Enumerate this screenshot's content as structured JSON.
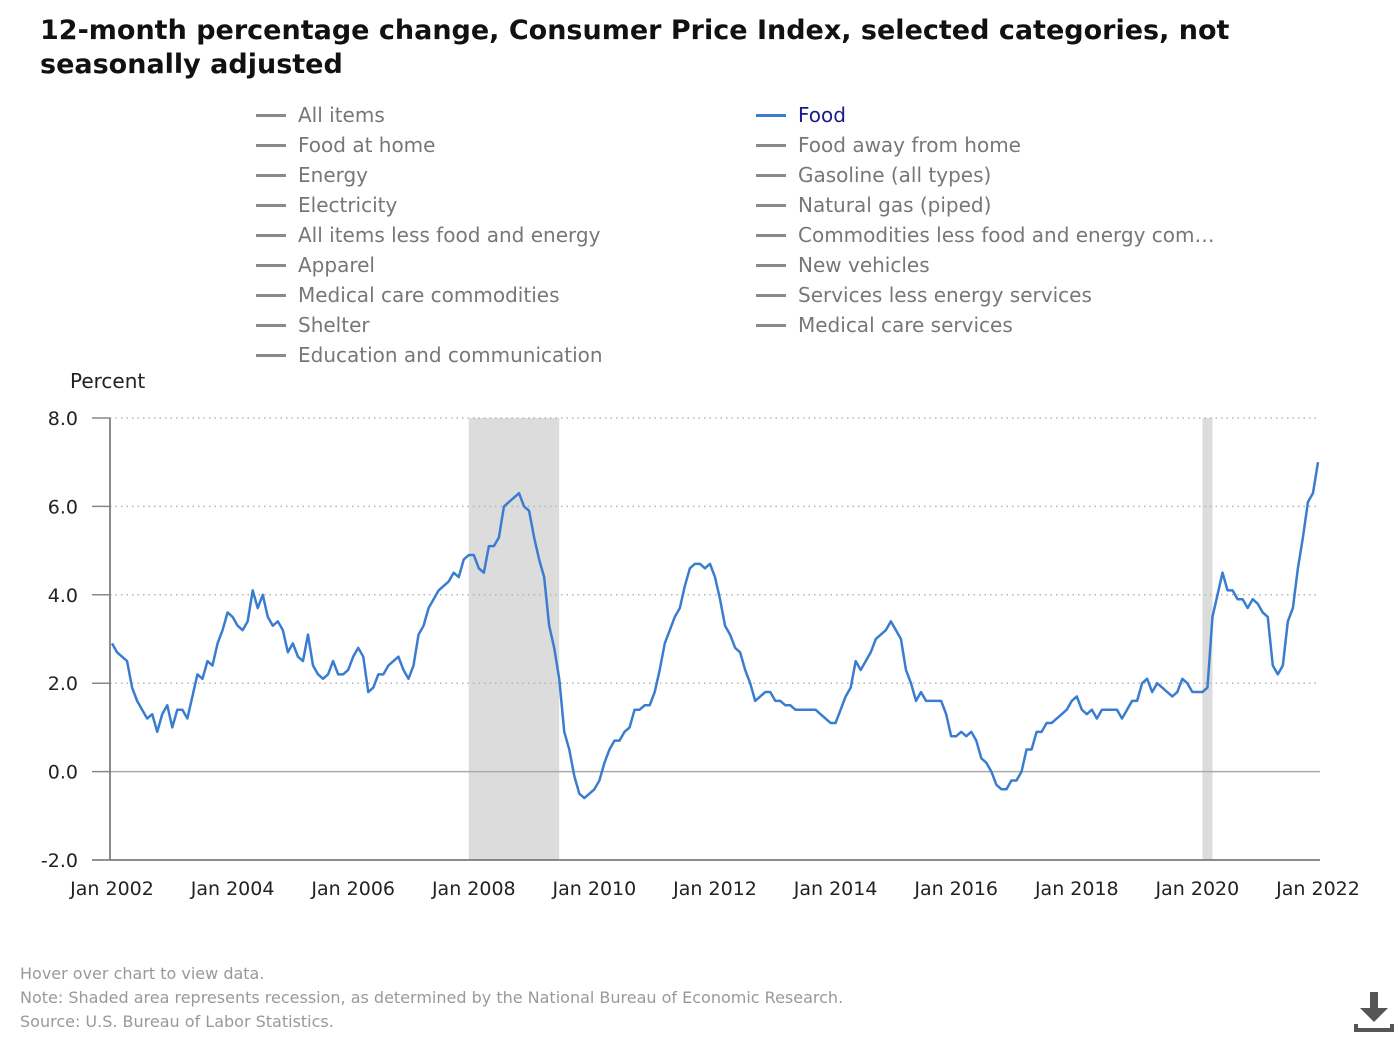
{
  "title": "12-month percentage change, Consumer Price Index, selected categories, not seasonally adjusted",
  "legend": {
    "left": [
      "All items",
      "Food at home",
      "Energy",
      "Electricity",
      "All items less food and energy",
      "Apparel",
      "Medical care commodities",
      "Shelter",
      "Education and communication"
    ],
    "right": [
      "Food",
      "Food away from home",
      "Gasoline (all types)",
      "Natural gas (piped)",
      "Commodities less food and energy com…",
      "New vehicles",
      "Services less energy services",
      "Medical care services"
    ],
    "active": "Food",
    "active_color": "#3a7dd0",
    "inactive_color": "#8a8a8a"
  },
  "footer": {
    "hover_hint": "Hover over chart to view data.",
    "note": "Note: Shaded area represents recession, as determined by the National Bureau of Economic Research.",
    "source": "Source: U.S. Bureau of Labor Statistics."
  },
  "download_icon": "download-icon",
  "chart_data": {
    "type": "line",
    "ylabel": "Percent",
    "ylim": [
      -2.0,
      8.0
    ],
    "yticks": [
      "8.0",
      "6.0",
      "4.0",
      "2.0",
      "0.0",
      "-2.0"
    ],
    "xticks": [
      "Jan 2002",
      "Jan 2004",
      "Jan 2006",
      "Jan 2008",
      "Jan 2010",
      "Jan 2012",
      "Jan 2014",
      "Jan 2016",
      "Jan 2018",
      "Jan 2020",
      "Jan 2022"
    ],
    "x_start": "Jan 2002",
    "x_frequency": "monthly",
    "grid": "horizontal dotted",
    "recessions": [
      {
        "start": "Dec 2007",
        "end": "Jun 2009"
      },
      {
        "start": "Feb 2020",
        "end": "Apr 2020"
      }
    ],
    "series": [
      {
        "name": "Food",
        "color": "#3a7dd0",
        "values": [
          2.9,
          2.7,
          2.6,
          2.5,
          1.9,
          1.6,
          1.4,
          1.2,
          1.3,
          0.9,
          1.3,
          1.5,
          1.0,
          1.4,
          1.4,
          1.2,
          1.7,
          2.2,
          2.1,
          2.5,
          2.4,
          2.9,
          3.2,
          3.6,
          3.5,
          3.3,
          3.2,
          3.4,
          4.1,
          3.7,
          4.0,
          3.5,
          3.3,
          3.4,
          3.2,
          2.7,
          2.9,
          2.6,
          2.5,
          3.1,
          2.4,
          2.2,
          2.1,
          2.2,
          2.5,
          2.2,
          2.2,
          2.3,
          2.6,
          2.8,
          2.6,
          1.8,
          1.9,
          2.2,
          2.2,
          2.4,
          2.5,
          2.6,
          2.3,
          2.1,
          2.4,
          3.1,
          3.3,
          3.7,
          3.9,
          4.1,
          4.2,
          4.3,
          4.5,
          4.4,
          4.8,
          4.9,
          4.9,
          4.6,
          4.5,
          5.1,
          5.1,
          5.3,
          6.0,
          6.1,
          6.2,
          6.3,
          6.0,
          5.9,
          5.3,
          4.8,
          4.4,
          3.3,
          2.8,
          2.1,
          0.9,
          0.5,
          -0.1,
          -0.5,
          -0.6,
          -0.5,
          -0.4,
          -0.2,
          0.2,
          0.5,
          0.7,
          0.7,
          0.9,
          1.0,
          1.4,
          1.4,
          1.5,
          1.5,
          1.8,
          2.3,
          2.9,
          3.2,
          3.5,
          3.7,
          4.2,
          4.6,
          4.7,
          4.7,
          4.6,
          4.7,
          4.4,
          3.9,
          3.3,
          3.1,
          2.8,
          2.7,
          2.3,
          2.0,
          1.6,
          1.7,
          1.8,
          1.8,
          1.6,
          1.6,
          1.5,
          1.5,
          1.4,
          1.4,
          1.4,
          1.4,
          1.4,
          1.3,
          1.2,
          1.1,
          1.1,
          1.4,
          1.7,
          1.9,
          2.5,
          2.3,
          2.5,
          2.7,
          3.0,
          3.1,
          3.2,
          3.4,
          3.2,
          3.0,
          2.3,
          2.0,
          1.6,
          1.8,
          1.6,
          1.6,
          1.6,
          1.6,
          1.3,
          0.8,
          0.8,
          0.9,
          0.8,
          0.9,
          0.7,
          0.3,
          0.2,
          0.0,
          -0.3,
          -0.4,
          -0.4,
          -0.2,
          -0.2,
          0.0,
          0.5,
          0.5,
          0.9,
          0.9,
          1.1,
          1.1,
          1.2,
          1.3,
          1.4,
          1.6,
          1.7,
          1.4,
          1.3,
          1.4,
          1.2,
          1.4,
          1.4,
          1.4,
          1.4,
          1.2,
          1.4,
          1.6,
          1.6,
          2.0,
          2.1,
          1.8,
          2.0,
          1.9,
          1.8,
          1.7,
          1.8,
          2.1,
          2.0,
          1.8,
          1.8,
          1.8,
          1.9,
          3.5,
          4.0,
          4.5,
          4.1,
          4.1,
          3.9,
          3.9,
          3.7,
          3.9,
          3.8,
          3.6,
          3.5,
          2.4,
          2.2,
          2.4,
          3.4,
          3.7,
          4.6,
          5.3,
          6.1,
          6.3,
          7.0
        ]
      }
    ]
  }
}
